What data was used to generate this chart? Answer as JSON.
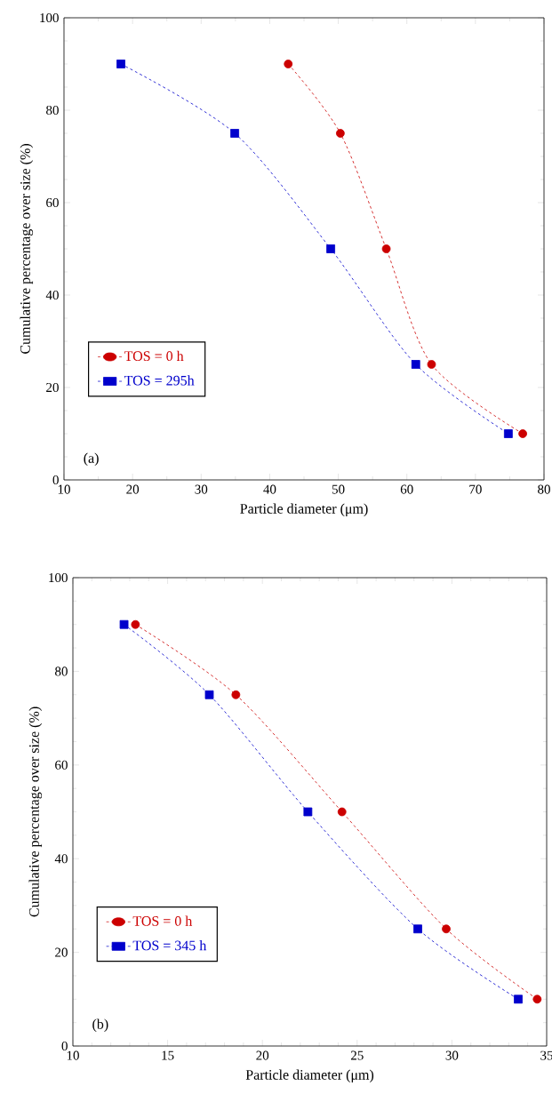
{
  "chart_data": [
    {
      "type": "line",
      "xlabel": "Particle diameter (μm)",
      "ylabel": "Cumulative percentage over size (%)",
      "xlim": [
        10,
        80
      ],
      "ylim": [
        0,
        100
      ],
      "xticks": [
        10,
        20,
        30,
        40,
        50,
        60,
        70,
        80
      ],
      "yticks": [
        0,
        20,
        40,
        60,
        80,
        100
      ],
      "legend": "bottom left",
      "line_style": "dashed",
      "grid": false,
      "annotations": [
        "(a)"
      ],
      "series": [
        {
          "name": "TOS = 0 h",
          "color": "#cc0000",
          "marker": "circle",
          "x": [
            42.7,
            50.3,
            57.0,
            63.6,
            76.9
          ],
          "values": [
            90,
            75,
            50,
            25,
            10
          ]
        },
        {
          "name": "TOS = 295h",
          "color": "#0000cc",
          "marker": "square",
          "x": [
            18.3,
            34.9,
            48.9,
            61.3,
            74.8
          ],
          "values": [
            90,
            75,
            50,
            25,
            10
          ]
        }
      ]
    },
    {
      "type": "line",
      "xlabel": "Particle diameter (μm)",
      "ylabel": "Cumulative percentage over size (%)",
      "xlim": [
        10,
        35
      ],
      "ylim": [
        0,
        100
      ],
      "xticks": [
        10,
        15,
        20,
        25,
        30,
        35
      ],
      "yticks": [
        0,
        20,
        40,
        60,
        80,
        100
      ],
      "legend": "bottom left",
      "line_style": "dashed",
      "grid": false,
      "annotations": [
        "(b)"
      ],
      "series": [
        {
          "name": "TOS = 0 h",
          "color": "#cc0000",
          "marker": "circle",
          "x": [
            13.3,
            18.6,
            24.2,
            29.7,
            34.5
          ],
          "values": [
            90,
            75,
            50,
            25,
            10
          ]
        },
        {
          "name": "TOS = 345 h",
          "color": "#0000cc",
          "marker": "square",
          "x": [
            12.7,
            17.2,
            22.4,
            28.2,
            33.5
          ],
          "values": [
            90,
            75,
            50,
            25,
            10
          ]
        }
      ]
    }
  ]
}
